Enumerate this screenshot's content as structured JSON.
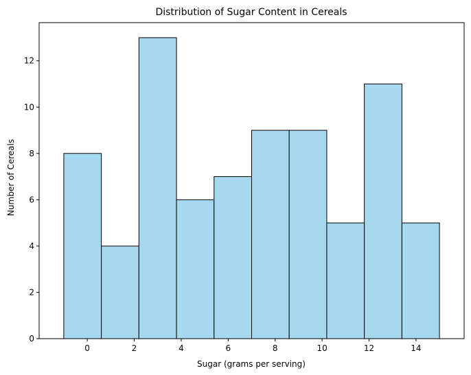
{
  "chart_data": {
    "type": "bar",
    "title": "Distribution of Sugar Content in Cereals",
    "xlabel": "Sugar (grams per serving)",
    "ylabel": "Number of Cereals",
    "bin_edges": [
      -1,
      0.6,
      2.2,
      3.8,
      5.4,
      7.0,
      8.6,
      10.2,
      11.8,
      13.4,
      15
    ],
    "values": [
      8,
      4,
      13,
      6,
      7,
      9,
      9,
      5,
      11,
      5
    ],
    "xlim": [
      -2.05,
      16.05
    ],
    "ylim": [
      0,
      13.65
    ],
    "xticks": [
      0,
      2,
      4,
      6,
      8,
      10,
      12,
      14
    ],
    "yticks": [
      0,
      2,
      4,
      6,
      8,
      10,
      12
    ],
    "grid": false,
    "colors": {
      "bar_fill": "#a6d9ef",
      "bar_edge": "#000000"
    }
  }
}
